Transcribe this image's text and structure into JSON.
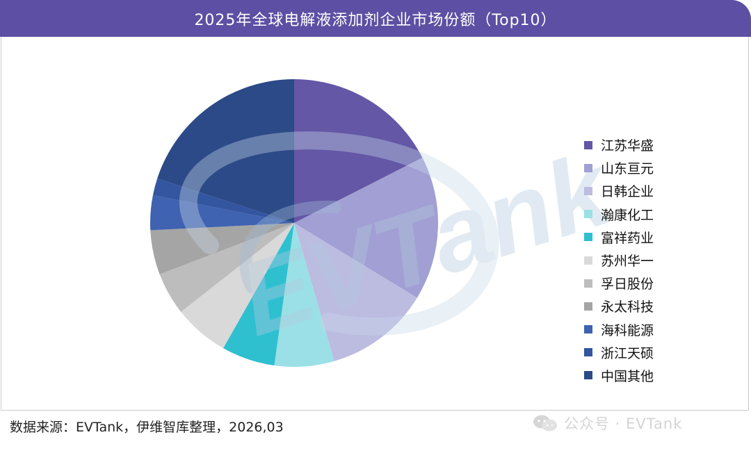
{
  "header": {
    "title": "2025年全球电解液添加剂企业市场份额（Top10）"
  },
  "footer": {
    "source": "数据来源：EVTank，伊维智库整理，2026,03"
  },
  "watermark": {
    "text": "公众号 · EVTank",
    "logo_text": "EVTank"
  },
  "colors": {
    "title_bar": "#5d4fa3",
    "watermark": "#c7d8e8"
  },
  "chart_data": {
    "type": "pie",
    "title": "2025年全球电解液添加剂企业市场份额（Top10）",
    "start_angle_deg": 0,
    "direction": "clockwise",
    "legend_position": "right",
    "slices": [
      {
        "label": "江苏华盛",
        "value": 17.5,
        "color": "#6457a6"
      },
      {
        "label": "山东亘元",
        "value": 16.2,
        "color": "#a19fd3"
      },
      {
        "label": "日韩企业",
        "value": 11.8,
        "color": "#bcbbe0"
      },
      {
        "label": "瀚康化工",
        "value": 6.7,
        "color": "#9be0e6"
      },
      {
        "label": "富祥药业",
        "value": 6.0,
        "color": "#2fc0d0"
      },
      {
        "label": "苏州华一",
        "value": 6.2,
        "color": "#d9d9d9"
      },
      {
        "label": "孚日股份",
        "value": 4.8,
        "color": "#bdbdbd"
      },
      {
        "label": "永太科技",
        "value": 5.0,
        "color": "#a5a5a5"
      },
      {
        "label": "海科能源",
        "value": 3.9,
        "color": "#3f62b1"
      },
      {
        "label": "浙江天硕",
        "value": 1.9,
        "color": "#34559f"
      },
      {
        "label": "中国其他",
        "value": 20.0,
        "color": "#2c4a87"
      }
    ]
  }
}
